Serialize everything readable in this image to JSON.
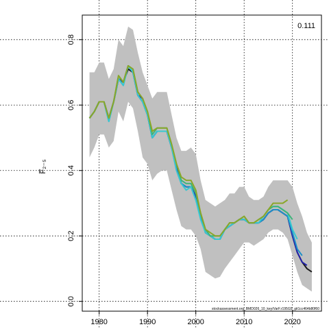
{
  "chart_data": {
    "type": "line",
    "title": "",
    "xlabel": "",
    "ylabel": "F̅₂₋₅",
    "xlim": [
      1976.5,
      2026.0
    ],
    "ylim": [
      -0.03,
      0.875
    ],
    "x_ticks": [
      "1980",
      "1990",
      "2000",
      "2010",
      "2020"
    ],
    "y_ticks": [
      "0.0",
      "0.2",
      "0.4",
      "0.6",
      "0.8"
    ],
    "grid": true,
    "annotation": "0.111",
    "footnote": "stockassessment.org_BMD026_10_key/VarF.r195G5_git1cc464b80f60",
    "band": {
      "x": [
        1978,
        1979,
        1980,
        1981,
        1982,
        1983,
        1984,
        1985,
        1986,
        1987,
        1988,
        1989,
        1990,
        1991,
        1992,
        1993,
        1994,
        1995,
        1996,
        1997,
        1998,
        1999,
        2000,
        2001,
        2002,
        2003,
        2004,
        2005,
        2006,
        2007,
        2008,
        2009,
        2010,
        2011,
        2012,
        2013,
        2014,
        2015,
        2016,
        2017,
        2018,
        2019,
        2020,
        2021,
        2022,
        2023,
        2024
      ],
      "lower": [
        0.44,
        0.47,
        0.51,
        0.51,
        0.47,
        0.49,
        0.58,
        0.55,
        0.61,
        0.59,
        0.52,
        0.44,
        0.42,
        0.37,
        0.39,
        0.4,
        0.4,
        0.34,
        0.28,
        0.23,
        0.22,
        0.22,
        0.2,
        0.16,
        0.09,
        0.08,
        0.07,
        0.075,
        0.1,
        0.12,
        0.14,
        0.16,
        0.18,
        0.18,
        0.17,
        0.18,
        0.19,
        0.21,
        0.22,
        0.22,
        0.21,
        0.19,
        0.14,
        0.09,
        0.05,
        0.04,
        0.03
      ],
      "upper": [
        0.7,
        0.7,
        0.73,
        0.73,
        0.68,
        0.71,
        0.8,
        0.78,
        0.84,
        0.83,
        0.76,
        0.7,
        0.66,
        0.62,
        0.64,
        0.64,
        0.64,
        0.57,
        0.5,
        0.46,
        0.46,
        0.47,
        0.45,
        0.37,
        0.31,
        0.3,
        0.29,
        0.3,
        0.31,
        0.33,
        0.33,
        0.35,
        0.35,
        0.32,
        0.31,
        0.31,
        0.32,
        0.35,
        0.37,
        0.37,
        0.37,
        0.37,
        0.35,
        0.3,
        0.26,
        0.21,
        0.18
      ]
    },
    "series": [
      {
        "color": "#1a1a1a",
        "x": [
          1978,
          1979,
          1980,
          1981,
          1982,
          1983,
          1984,
          1985,
          1986,
          1987,
          1988,
          1989,
          1990,
          1991,
          1992,
          1993,
          1994,
          1995,
          1996,
          1997,
          1998,
          1999,
          2000,
          2001,
          2002,
          2003,
          2004,
          2005,
          2006,
          2007,
          2008,
          2009,
          2010,
          2011,
          2012,
          2013,
          2014,
          2015,
          2016,
          2017,
          2018,
          2019,
          2020,
          2021,
          2022,
          2023,
          2024
        ],
        "y": [
          0.56,
          0.58,
          0.61,
          0.61,
          0.56,
          0.61,
          0.68,
          0.67,
          0.71,
          0.7,
          0.63,
          0.61,
          0.57,
          0.5,
          0.52,
          0.52,
          0.52,
          0.47,
          0.41,
          0.36,
          0.35,
          0.35,
          0.32,
          0.26,
          0.21,
          0.2,
          0.19,
          0.19,
          0.22,
          0.23,
          0.24,
          0.25,
          0.25,
          0.24,
          0.24,
          0.24,
          0.25,
          0.27,
          0.28,
          0.28,
          0.27,
          0.26,
          0.2,
          0.15,
          0.12,
          0.1,
          0.09
        ]
      },
      {
        "color": "#2222aa",
        "x": [
          1978,
          1979,
          1980,
          1981,
          1982,
          1983,
          1984,
          1985,
          1986,
          1987,
          1988,
          1989,
          1990,
          1991,
          1992,
          1993,
          1994,
          1995,
          1996,
          1997,
          1998,
          1999,
          2000,
          2001,
          2002,
          2003,
          2004,
          2005,
          2006,
          2007,
          2008,
          2009,
          2010,
          2011,
          2012,
          2013,
          2014,
          2015,
          2016,
          2017,
          2018,
          2019,
          2020,
          2021,
          2022,
          2023
        ],
        "y": [
          0.56,
          0.58,
          0.61,
          0.61,
          0.56,
          0.61,
          0.68,
          0.67,
          0.72,
          0.7,
          0.63,
          0.62,
          0.57,
          0.5,
          0.52,
          0.52,
          0.52,
          0.47,
          0.41,
          0.36,
          0.35,
          0.35,
          0.32,
          0.26,
          0.21,
          0.2,
          0.19,
          0.19,
          0.22,
          0.23,
          0.24,
          0.25,
          0.25,
          0.24,
          0.24,
          0.24,
          0.25,
          0.27,
          0.28,
          0.28,
          0.27,
          0.26,
          0.2,
          0.15,
          0.12,
          0.11
        ]
      },
      {
        "color": "#1e90c8",
        "x": [
          1978,
          1979,
          1980,
          1981,
          1982,
          1983,
          1984,
          1985,
          1986,
          1987,
          1988,
          1989,
          1990,
          1991,
          1992,
          1993,
          1994,
          1995,
          1996,
          1997,
          1998,
          1999,
          2000,
          2001,
          2002,
          2003,
          2004,
          2005,
          2006,
          2007,
          2008,
          2009,
          2010,
          2011,
          2012,
          2013,
          2014,
          2015,
          2016,
          2017,
          2018,
          2019,
          2020,
          2021,
          2022
        ],
        "y": [
          0.56,
          0.58,
          0.61,
          0.61,
          0.55,
          0.61,
          0.68,
          0.66,
          0.72,
          0.7,
          0.63,
          0.61,
          0.57,
          0.5,
          0.52,
          0.52,
          0.52,
          0.47,
          0.4,
          0.36,
          0.35,
          0.35,
          0.31,
          0.26,
          0.21,
          0.2,
          0.19,
          0.19,
          0.22,
          0.23,
          0.24,
          0.25,
          0.25,
          0.24,
          0.24,
          0.24,
          0.25,
          0.27,
          0.28,
          0.28,
          0.27,
          0.26,
          0.21,
          0.16,
          0.14
        ]
      },
      {
        "color": "#38c8d0",
        "x": [
          1978,
          1979,
          1980,
          1981,
          1982,
          1983,
          1984,
          1985,
          1986,
          1987,
          1988,
          1989,
          1990,
          1991,
          1992,
          1993,
          1994,
          1995,
          1996,
          1997,
          1998,
          1999,
          2000,
          2001,
          2002,
          2003,
          2004,
          2005,
          2006,
          2007,
          2008,
          2009,
          2010,
          2011,
          2012,
          2013,
          2014,
          2015,
          2016,
          2017,
          2018,
          2019,
          2020,
          2021
        ],
        "y": [
          0.56,
          0.58,
          0.61,
          0.61,
          0.55,
          0.61,
          0.68,
          0.66,
          0.72,
          0.7,
          0.63,
          0.61,
          0.57,
          0.5,
          0.52,
          0.52,
          0.52,
          0.47,
          0.4,
          0.36,
          0.34,
          0.35,
          0.31,
          0.25,
          0.21,
          0.2,
          0.19,
          0.19,
          0.22,
          0.23,
          0.24,
          0.25,
          0.25,
          0.24,
          0.24,
          0.24,
          0.26,
          0.28,
          0.29,
          0.29,
          0.28,
          0.27,
          0.22,
          0.19
        ]
      },
      {
        "color": "#3cb478",
        "x": [
          1978,
          1979,
          1980,
          1981,
          1982,
          1983,
          1984,
          1985,
          1986,
          1987,
          1988,
          1989,
          1990,
          1991,
          1992,
          1993,
          1994,
          1995,
          1996,
          1997,
          1998,
          1999,
          2000,
          2001,
          2002,
          2003,
          2004,
          2005,
          2006,
          2007,
          2008,
          2009,
          2010,
          2011,
          2012,
          2013,
          2014,
          2015,
          2016,
          2017,
          2018,
          2019,
          2020
        ],
        "y": [
          0.56,
          0.58,
          0.61,
          0.61,
          0.56,
          0.61,
          0.69,
          0.67,
          0.72,
          0.71,
          0.64,
          0.62,
          0.58,
          0.51,
          0.53,
          0.53,
          0.53,
          0.48,
          0.42,
          0.37,
          0.36,
          0.36,
          0.33,
          0.27,
          0.22,
          0.2,
          0.2,
          0.2,
          0.22,
          0.24,
          0.24,
          0.25,
          0.26,
          0.24,
          0.24,
          0.25,
          0.26,
          0.28,
          0.29,
          0.29,
          0.28,
          0.27,
          0.25
        ]
      },
      {
        "color": "#8aa628",
        "x": [
          1978,
          1979,
          1980,
          1981,
          1982,
          1983,
          1984,
          1985,
          1986,
          1987,
          1988,
          1989,
          1990,
          1991,
          1992,
          1993,
          1994,
          1995,
          1996,
          1997,
          1998,
          1999,
          2000,
          2001,
          2002,
          2003,
          2004,
          2005,
          2006,
          2007,
          2008,
          2009,
          2010,
          2011,
          2012,
          2013,
          2014,
          2015,
          2016,
          2017,
          2018,
          2019
        ],
        "y": [
          0.56,
          0.58,
          0.61,
          0.61,
          0.56,
          0.61,
          0.69,
          0.67,
          0.72,
          0.71,
          0.64,
          0.62,
          0.58,
          0.52,
          0.53,
          0.53,
          0.53,
          0.48,
          0.42,
          0.38,
          0.37,
          0.37,
          0.34,
          0.27,
          0.22,
          0.21,
          0.2,
          0.2,
          0.22,
          0.24,
          0.24,
          0.25,
          0.26,
          0.24,
          0.24,
          0.25,
          0.26,
          0.28,
          0.3,
          0.3,
          0.3,
          0.31
        ]
      }
    ]
  }
}
